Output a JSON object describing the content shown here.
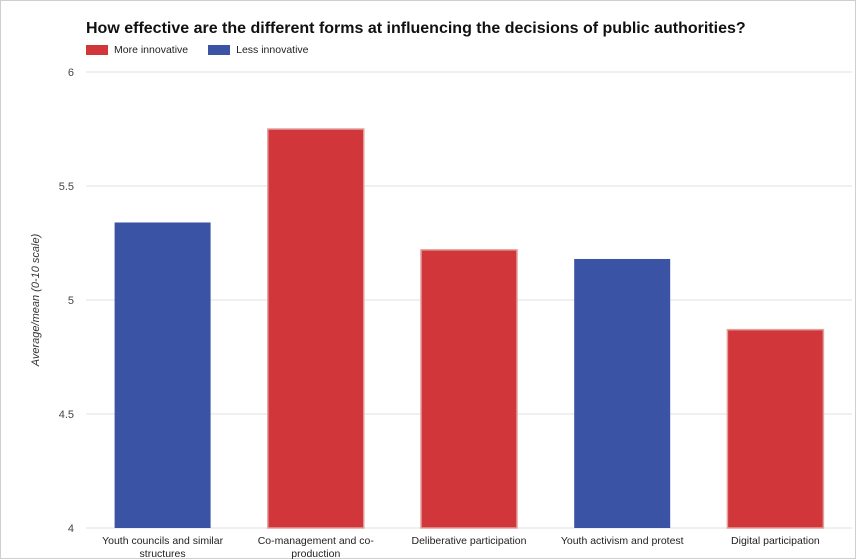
{
  "chart_data": {
    "type": "bar",
    "title": "How effective are the different forms at influencing the decisions of public authorities?",
    "ylabel": "Average/mean (0-10 scale)",
    "xlabel": "",
    "ylim": [
      4,
      6
    ],
    "yticks": [
      "4",
      "4.5",
      "5",
      "5.5",
      "6"
    ],
    "grid": true,
    "legend_position": "top-left",
    "legend": [
      {
        "name": "More innovative",
        "color": "#d0363a"
      },
      {
        "name": "Less innovative",
        "color": "#3a53a4"
      }
    ],
    "categories": [
      [
        "Youth councils and similar",
        "structures"
      ],
      [
        "Co-management and co-",
        "production"
      ],
      [
        "Deliberative participation"
      ],
      [
        "Youth activism and protest"
      ],
      [
        "Digital participation"
      ]
    ],
    "values": [
      5.34,
      5.75,
      5.22,
      5.18,
      4.87
    ],
    "groups": [
      "Less innovative",
      "More innovative",
      "More innovative",
      "Less innovative",
      "More innovative"
    ]
  }
}
